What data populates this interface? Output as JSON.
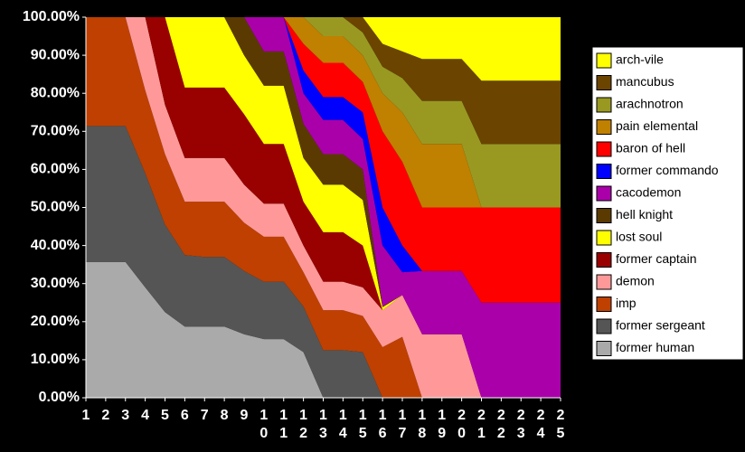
{
  "chart_data": {
    "type": "stacked_area_percent",
    "categories": [
      "1",
      "2",
      "3",
      "4",
      "5",
      "6",
      "7",
      "8",
      "9",
      "10",
      "11",
      "12",
      "13",
      "14",
      "15",
      "16",
      "17",
      "18",
      "19",
      "20",
      "21",
      "22",
      "23",
      "24",
      "25"
    ],
    "ylim": [
      0,
      100
    ],
    "yticks": [
      {
        "value": 0,
        "label": "0.00%"
      },
      {
        "value": 10,
        "label": "10.00%"
      },
      {
        "value": 20,
        "label": "20.00%"
      },
      {
        "value": 30,
        "label": "30.00%"
      },
      {
        "value": 40,
        "label": "40.00%"
      },
      {
        "value": 50,
        "label": "50.00%"
      },
      {
        "value": 60,
        "label": "60.00%"
      },
      {
        "value": 70,
        "label": "70.00%"
      },
      {
        "value": 80,
        "label": "80.00%"
      },
      {
        "value": 90,
        "label": "90.00%"
      },
      {
        "value": 100,
        "label": "100.00%"
      }
    ],
    "legend": "right",
    "series": [
      {
        "name": "arch-vile",
        "color": "#ffff00",
        "values": [
          0,
          0,
          0,
          0,
          0,
          0,
          0,
          0,
          0,
          0,
          0,
          0,
          0,
          0,
          0,
          7,
          9,
          11,
          11,
          11,
          16.7,
          16.7,
          16.7,
          16.7,
          16.7
        ]
      },
      {
        "name": "mancubus",
        "color": "#6b4400",
        "values": [
          0,
          0,
          0,
          0,
          0,
          0,
          0,
          0,
          0,
          0,
          0,
          0,
          0,
          0,
          4,
          6,
          7,
          11,
          11,
          11,
          16.6,
          16.6,
          16.6,
          16.6,
          16.6
        ]
      },
      {
        "name": "arachnotron",
        "color": "#999922",
        "values": [
          0,
          0,
          0,
          0,
          0,
          0,
          0,
          0,
          0,
          0,
          0,
          0,
          5,
          5,
          6,
          7,
          9,
          11.3,
          11.3,
          11.3,
          16.7,
          16.7,
          16.7,
          16.7,
          16.7
        ]
      },
      {
        "name": "pain elemental",
        "color": "#c08000",
        "values": [
          0,
          0,
          0,
          0,
          0,
          0,
          0,
          0,
          0,
          0,
          0,
          7,
          7,
          7,
          7,
          10,
          13,
          16.7,
          16.7,
          16.7,
          0,
          0,
          0,
          0,
          0
        ]
      },
      {
        "name": "baron of hell",
        "color": "#ff0000",
        "values": [
          0,
          0,
          0,
          0,
          0,
          0,
          0,
          0,
          0,
          0,
          0,
          7,
          9,
          9,
          8,
          20,
          22,
          16.7,
          16.7,
          16.7,
          25,
          25,
          25,
          25,
          25
        ]
      },
      {
        "name": "former commando",
        "color": "#0000ff",
        "values": [
          0,
          0,
          0,
          0,
          0,
          0,
          0,
          0,
          0,
          0,
          0,
          6,
          6,
          6,
          7,
          10,
          7,
          0,
          0,
          0,
          0,
          0,
          0,
          0,
          0
        ]
      },
      {
        "name": "cacodemon",
        "color": "#aa00aa",
        "values": [
          0,
          0,
          0,
          0,
          0,
          0,
          0,
          0,
          0,
          9,
          9,
          8,
          9,
          9,
          8,
          16,
          6,
          16.6,
          16.6,
          16.6,
          25,
          25,
          25,
          25,
          25
        ]
      },
      {
        "name": "hell knight",
        "color": "#5a3a00",
        "values": [
          0,
          0,
          0,
          0,
          0,
          0,
          0,
          0,
          10,
          9,
          9,
          9,
          8,
          8,
          8,
          0.2,
          0,
          0,
          0,
          0,
          0,
          0,
          0,
          0,
          0
        ]
      },
      {
        "name": "lost soul",
        "color": "#ffff00",
        "values": [
          0,
          0,
          0,
          0,
          0,
          18.5,
          18.5,
          18.5,
          15.5,
          15.3,
          15.3,
          11.5,
          12.5,
          12.5,
          12,
          0.8,
          0,
          0,
          0,
          0,
          0,
          0,
          0,
          0,
          0
        ]
      },
      {
        "name": "former captain",
        "color": "#990000",
        "values": [
          0,
          0,
          0,
          0,
          23,
          18.5,
          18.5,
          18.5,
          18.5,
          15.7,
          15.7,
          11.5,
          13,
          13,
          11,
          0,
          0,
          0,
          0,
          0,
          0,
          0,
          0,
          0,
          0
        ]
      },
      {
        "name": "demon",
        "color": "#ff9999",
        "values": [
          0,
          0,
          0,
          19.2,
          13,
          11.5,
          11.5,
          11.5,
          10,
          8.7,
          8.7,
          7,
          7.5,
          7.5,
          7.5,
          9.7,
          11,
          16.7,
          16.7,
          16.7,
          0,
          0,
          0,
          0,
          0
        ]
      },
      {
        "name": "imp",
        "color": "#bf4000",
        "values": [
          28.6,
          28.6,
          28.6,
          21.8,
          18.5,
          14,
          14.5,
          14.5,
          12.7,
          11.8,
          11.8,
          9,
          10.5,
          10.5,
          9.5,
          13.3,
          16,
          0,
          0,
          0,
          0,
          0,
          0,
          0,
          0
        ]
      },
      {
        "name": "former sergeant",
        "color": "#555555",
        "values": [
          35.7,
          35.7,
          35.7,
          30,
          23,
          18.8,
          18.3,
          18.3,
          16.6,
          15.1,
          15.1,
          12,
          12.5,
          12.5,
          12,
          0,
          0,
          0,
          0,
          0,
          0,
          0,
          0,
          0,
          0
        ]
      },
      {
        "name": "former human",
        "color": "#aaaaaa",
        "values": [
          35.7,
          35.7,
          35.7,
          29,
          22.5,
          18.7,
          18.7,
          18.7,
          16.7,
          15.4,
          15.4,
          12,
          0,
          0,
          0,
          0,
          0,
          0,
          0,
          0,
          0,
          0,
          0,
          0,
          0
        ]
      }
    ]
  }
}
